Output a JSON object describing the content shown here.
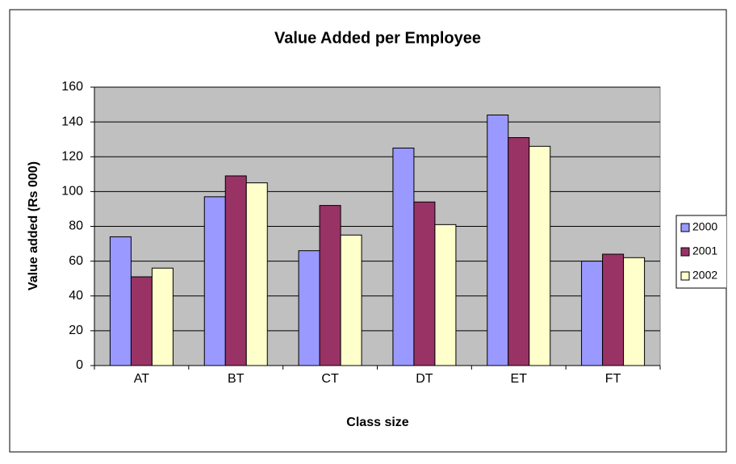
{
  "chart_data": {
    "type": "bar",
    "title": "Value Added per Employee",
    "x_label": "Class size",
    "y_label": "Value added (Rs 000)",
    "categories": [
      "AT",
      "BT",
      "CT",
      "DT",
      "ET",
      "FT"
    ],
    "series": [
      {
        "name": "2000",
        "color": "#9999ff",
        "values": [
          74,
          97,
          66,
          125,
          144,
          60
        ]
      },
      {
        "name": "2001",
        "color": "#993366",
        "values": [
          51,
          109,
          92,
          94,
          131,
          64
        ]
      },
      {
        "name": "2002",
        "color": "#ffffcc",
        "values": [
          56,
          105,
          75,
          81,
          126,
          62
        ]
      }
    ],
    "ylim": [
      0,
      160
    ],
    "yticks": [
      0,
      20,
      40,
      60,
      80,
      100,
      120,
      140,
      160
    ],
    "grid": true,
    "legend": "right"
  }
}
